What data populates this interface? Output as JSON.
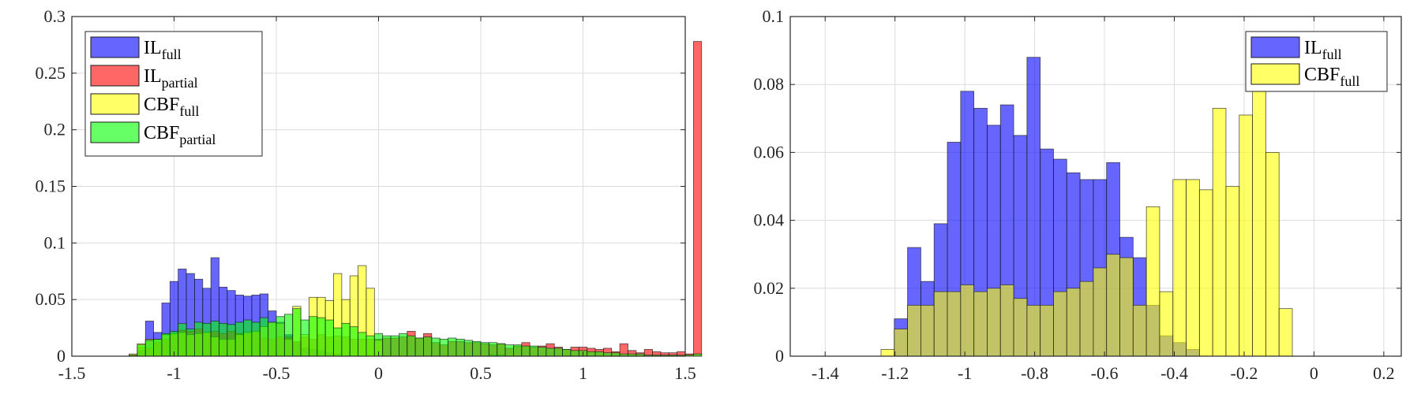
{
  "chart_data": [
    {
      "type": "bar",
      "xlim": [
        -1.5,
        1.5
      ],
      "ylim": [
        0,
        0.3
      ],
      "xticks": [
        "-1.5",
        "-1",
        "-0.5",
        "0",
        "0.5",
        "1",
        "1.5"
      ],
      "yticks": [
        "0",
        "0.05",
        "0.1",
        "0.15",
        "0.2",
        "0.25",
        "0.3"
      ],
      "grid": true,
      "legend_position": "top-left",
      "bin_width": 0.04,
      "series": [
        {
          "name": "IL",
          "sub": "full",
          "color": "#0000ff",
          "alpha": 0.6,
          "x_start": -1.22,
          "values": [
            0,
            0.005,
            0.031,
            0.021,
            0.047,
            0.066,
            0.077,
            0.073,
            0.068,
            0.06,
            0.087,
            0.061,
            0.058,
            0.054,
            0.053,
            0.054,
            0.055,
            0.04,
            0.03,
            0.019,
            0.012,
            0.007,
            0.006,
            0.005,
            0.003,
            0.002
          ]
        },
        {
          "name": "IL",
          "sub": "partial",
          "color": "#ff0000",
          "alpha": 0.6,
          "x_start": -1.22,
          "values": [
            0.001,
            0.008,
            0.007,
            0.012,
            0.015,
            0.019,
            0.023,
            0.022,
            0.024,
            0.021,
            0.022,
            0.02,
            0.022,
            0.02,
            0.02,
            0.021,
            0.016,
            0.015,
            0.017,
            0.017,
            0.013,
            0.017,
            0.015,
            0.019,
            0.017,
            0.018,
            0.017,
            0.015,
            0.015,
            0.015,
            0.015,
            0.016,
            0.016,
            0.017,
            0.022,
            0.016,
            0.02,
            0.012,
            0.01,
            0.013,
            0.013,
            0.012,
            0.012,
            0.011,
            0.01,
            0.011,
            0.007,
            0.009,
            0.012,
            0.008,
            0.009,
            0.011,
            0.008,
            0.006,
            0.008,
            0.008,
            0.007,
            0.006,
            0.007,
            0.004,
            0.011,
            0.005,
            0.003,
            0.006,
            0.004,
            0.003,
            0.003,
            0.004,
            0.002,
            0.278
          ]
        },
        {
          "name": "CBF",
          "sub": "full",
          "color": "#ffff00",
          "alpha": 0.6,
          "x_start": -1.22,
          "values": [
            0.002,
            0.011,
            0.015,
            0.015,
            0.019,
            0.02,
            0.021,
            0.019,
            0.02,
            0.021,
            0.017,
            0.015,
            0.015,
            0.019,
            0.021,
            0.022,
            0.026,
            0.03,
            0.029,
            0.015,
            0.044,
            0.019,
            0.052,
            0.052,
            0.049,
            0.073,
            0.05,
            0.071,
            0.08,
            0.06,
            0.014,
            0,
            0,
            0,
            0,
            0,
            0,
            0,
            0,
            0,
            0,
            0,
            0,
            0,
            0.001,
            0.001
          ]
        },
        {
          "name": "CBF",
          "sub": "partial",
          "color": "#00ff00",
          "alpha": 0.6,
          "x_start": -1.22,
          "values": [
            0.001,
            0.01,
            0.014,
            0.015,
            0.02,
            0.022,
            0.029,
            0.024,
            0.03,
            0.029,
            0.031,
            0.029,
            0.028,
            0.03,
            0.032,
            0.03,
            0.034,
            0.03,
            0.035,
            0.037,
            0.042,
            0.032,
            0.035,
            0.034,
            0.032,
            0.025,
            0.029,
            0.026,
            0.021,
            0.018,
            0.02,
            0.018,
            0.018,
            0.02,
            0.018,
            0.016,
            0.017,
            0.016,
            0.015,
            0.016,
            0.015,
            0.014,
            0.013,
            0.012,
            0.012,
            0.011,
            0.01,
            0.01,
            0.009,
            0.009,
            0.008,
            0.007,
            0.007,
            0.006,
            0.005,
            0.005,
            0.004,
            0.004,
            0.003,
            0.003,
            0.002,
            0.002,
            0.002,
            0.001,
            0.001,
            0.001,
            0.001,
            0.001,
            0.001,
            0.002
          ]
        }
      ]
    },
    {
      "type": "bar",
      "xlim": [
        -1.5,
        0.25
      ],
      "ylim": [
        0,
        0.1
      ],
      "xticks": [
        "-1.4",
        "-1.2",
        "-1",
        "-0.8",
        "-0.6",
        "-0.4",
        "-0.2",
        "0",
        "0.2"
      ],
      "yticks": [
        "0",
        "0.02",
        "0.04",
        "0.06",
        "0.08",
        "0.1"
      ],
      "grid": true,
      "legend_position": "top-right",
      "bin_width": 0.038,
      "series": [
        {
          "name": "IL",
          "sub": "full",
          "color": "#0000ff",
          "alpha": 0.6,
          "x_start": -1.24,
          "values": [
            0,
            0.011,
            0.032,
            0.022,
            0.039,
            0.063,
            0.078,
            0.073,
            0.068,
            0.074,
            0.065,
            0.088,
            0.061,
            0.058,
            0.054,
            0.052,
            0.052,
            0.057,
            0.035,
            0.029,
            0.015,
            0.006,
            0.004,
            0.002
          ]
        },
        {
          "name": "CBF",
          "sub": "full",
          "color": "#ffff00",
          "alpha": 0.6,
          "x_start": -1.24,
          "values": [
            0.002,
            0.008,
            0.015,
            0.015,
            0.019,
            0.019,
            0.021,
            0.019,
            0.02,
            0.021,
            0.017,
            0.015,
            0.015,
            0.019,
            0.02,
            0.022,
            0.026,
            0.03,
            0.029,
            0.015,
            0.044,
            0.019,
            0.052,
            0.052,
            0.049,
            0.073,
            0.05,
            0.071,
            0.08,
            0.06,
            0.014,
            0,
            0,
            0,
            0,
            0,
            0,
            0,
            0,
            0,
            0,
            0.001,
            0.001
          ]
        }
      ]
    }
  ]
}
